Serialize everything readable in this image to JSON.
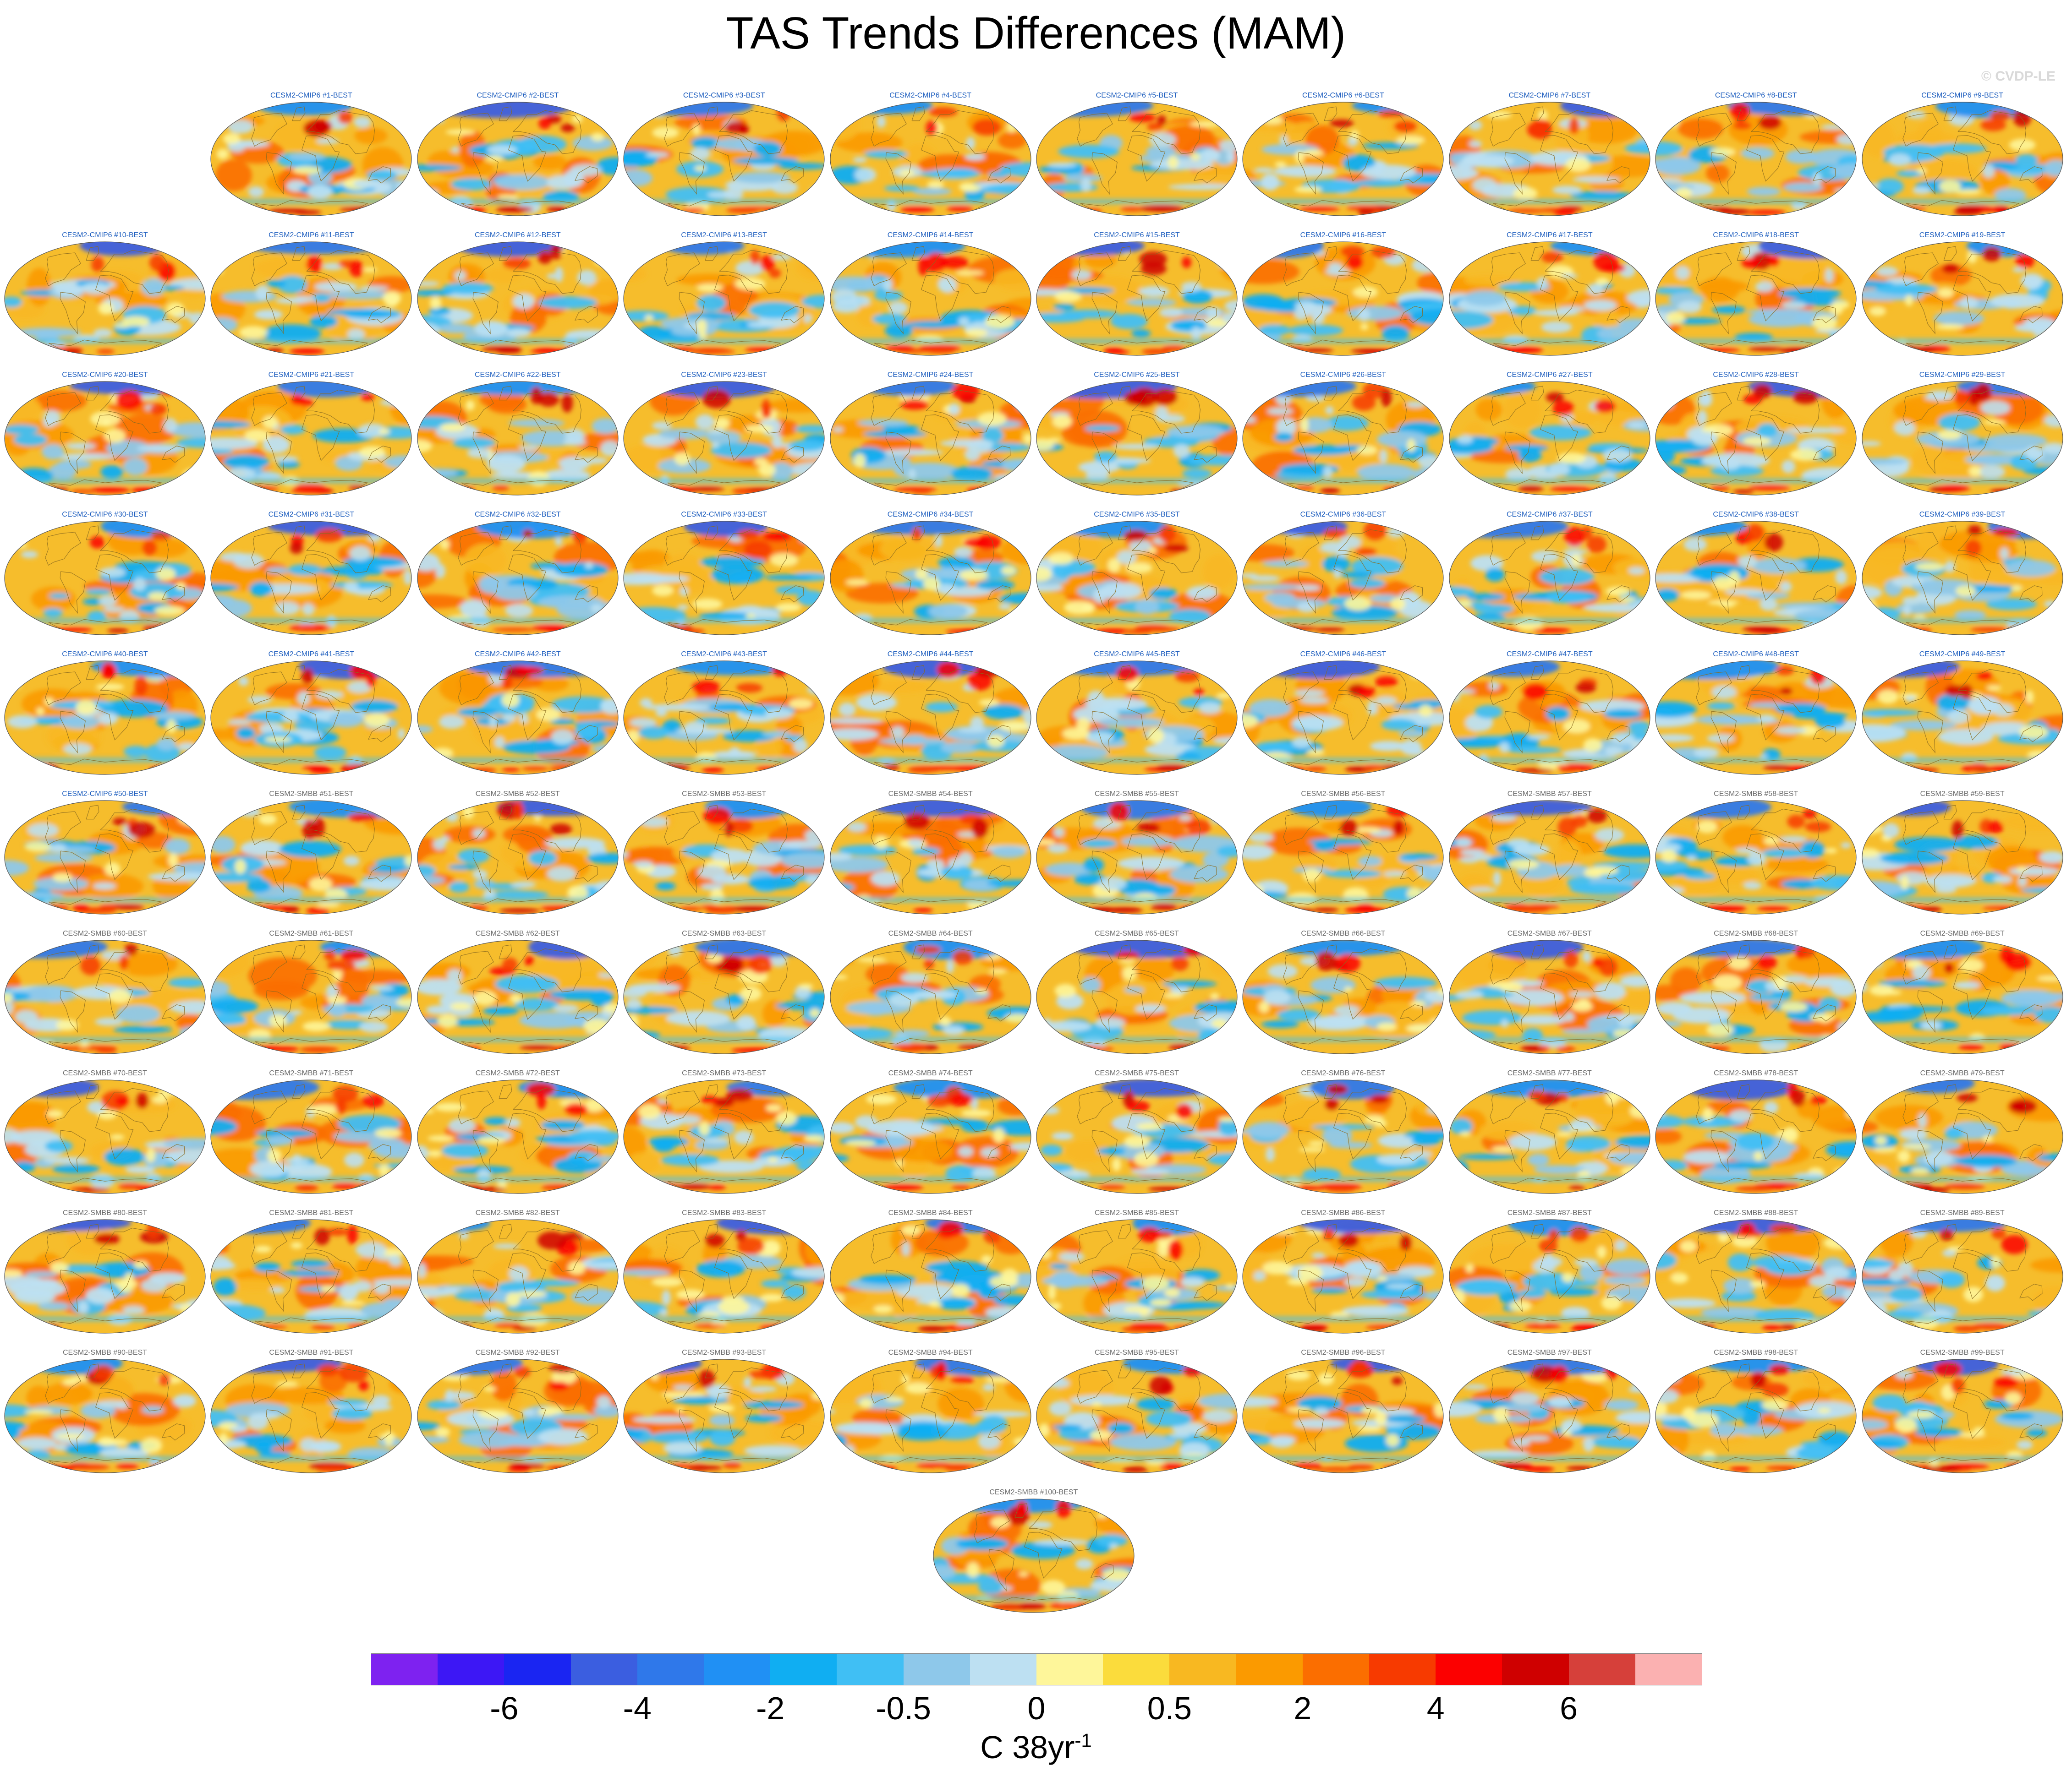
{
  "figure": {
    "title": "TAS Trends Differences (MAM)",
    "copyright": "© CVDP-LE",
    "units_base": "C 38yr",
    "units_exp": "-1"
  },
  "colors": {
    "cmip6_label": "#1f5fbf",
    "smbb_label": "#6b6b6b",
    "coast": "#8a6a1e",
    "ocean_base": "#f6bd2c"
  },
  "colorbar": {
    "colors": [
      "#7e22f0",
      "#3d17f5",
      "#1a25f2",
      "#3b5ee0",
      "#2f78ea",
      "#2090f4",
      "#10aef2",
      "#40bff4",
      "#8ec8ea",
      "#bde0f2",
      "#fef69a",
      "#fbdc3c",
      "#f8b821",
      "#fb9a00",
      "#fb6e00",
      "#f73a00",
      "#fc0000",
      "#cf0000",
      "#d6403a",
      "#fbb1b1"
    ],
    "tick_labels": [
      "-6",
      "-4",
      "-2",
      "-0.5",
      "0",
      "0.5",
      "2",
      "4",
      "6"
    ],
    "tick_boundaries": [
      2,
      4,
      6,
      8,
      10,
      12,
      14,
      16,
      18
    ]
  },
  "panels": [
    {
      "label": "CESM2-CMIP6 #1-BEST",
      "group": "cmip6"
    },
    {
      "label": "CESM2-CMIP6 #2-BEST",
      "group": "cmip6"
    },
    {
      "label": "CESM2-CMIP6 #3-BEST",
      "group": "cmip6"
    },
    {
      "label": "CESM2-CMIP6 #4-BEST",
      "group": "cmip6"
    },
    {
      "label": "CESM2-CMIP6 #5-BEST",
      "group": "cmip6"
    },
    {
      "label": "CESM2-CMIP6 #6-BEST",
      "group": "cmip6"
    },
    {
      "label": "CESM2-CMIP6 #7-BEST",
      "group": "cmip6"
    },
    {
      "label": "CESM2-CMIP6 #8-BEST",
      "group": "cmip6"
    },
    {
      "label": "CESM2-CMIP6 #9-BEST",
      "group": "cmip6"
    },
    {
      "label": "CESM2-CMIP6 #10-BEST",
      "group": "cmip6"
    },
    {
      "label": "CESM2-CMIP6 #11-BEST",
      "group": "cmip6"
    },
    {
      "label": "CESM2-CMIP6 #12-BEST",
      "group": "cmip6"
    },
    {
      "label": "CESM2-CMIP6 #13-BEST",
      "group": "cmip6"
    },
    {
      "label": "CESM2-CMIP6 #14-BEST",
      "group": "cmip6"
    },
    {
      "label": "CESM2-CMIP6 #15-BEST",
      "group": "cmip6"
    },
    {
      "label": "CESM2-CMIP6 #16-BEST",
      "group": "cmip6"
    },
    {
      "label": "CESM2-CMIP6 #17-BEST",
      "group": "cmip6"
    },
    {
      "label": "CESM2-CMIP6 #18-BEST",
      "group": "cmip6"
    },
    {
      "label": "CESM2-CMIP6 #19-BEST",
      "group": "cmip6"
    },
    {
      "label": "CESM2-CMIP6 #20-BEST",
      "group": "cmip6"
    },
    {
      "label": "CESM2-CMIP6 #21-BEST",
      "group": "cmip6"
    },
    {
      "label": "CESM2-CMIP6 #22-BEST",
      "group": "cmip6"
    },
    {
      "label": "CESM2-CMIP6 #23-BEST",
      "group": "cmip6"
    },
    {
      "label": "CESM2-CMIP6 #24-BEST",
      "group": "cmip6"
    },
    {
      "label": "CESM2-CMIP6 #25-BEST",
      "group": "cmip6"
    },
    {
      "label": "CESM2-CMIP6 #26-BEST",
      "group": "cmip6"
    },
    {
      "label": "CESM2-CMIP6 #27-BEST",
      "group": "cmip6"
    },
    {
      "label": "CESM2-CMIP6 #28-BEST",
      "group": "cmip6"
    },
    {
      "label": "CESM2-CMIP6 #29-BEST",
      "group": "cmip6"
    },
    {
      "label": "CESM2-CMIP6 #30-BEST",
      "group": "cmip6"
    },
    {
      "label": "CESM2-CMIP6 #31-BEST",
      "group": "cmip6"
    },
    {
      "label": "CESM2-CMIP6 #32-BEST",
      "group": "cmip6"
    },
    {
      "label": "CESM2-CMIP6 #33-BEST",
      "group": "cmip6"
    },
    {
      "label": "CESM2-CMIP6 #34-BEST",
      "group": "cmip6"
    },
    {
      "label": "CESM2-CMIP6 #35-BEST",
      "group": "cmip6"
    },
    {
      "label": "CESM2-CMIP6 #36-BEST",
      "group": "cmip6"
    },
    {
      "label": "CESM2-CMIP6 #37-BEST",
      "group": "cmip6"
    },
    {
      "label": "CESM2-CMIP6 #38-BEST",
      "group": "cmip6"
    },
    {
      "label": "CESM2-CMIP6 #39-BEST",
      "group": "cmip6"
    },
    {
      "label": "CESM2-CMIP6 #40-BEST",
      "group": "cmip6"
    },
    {
      "label": "CESM2-CMIP6 #41-BEST",
      "group": "cmip6"
    },
    {
      "label": "CESM2-CMIP6 #42-BEST",
      "group": "cmip6"
    },
    {
      "label": "CESM2-CMIP6 #43-BEST",
      "group": "cmip6"
    },
    {
      "label": "CESM2-CMIP6 #44-BEST",
      "group": "cmip6"
    },
    {
      "label": "CESM2-CMIP6 #45-BEST",
      "group": "cmip6"
    },
    {
      "label": "CESM2-CMIP6 #46-BEST",
      "group": "cmip6"
    },
    {
      "label": "CESM2-CMIP6 #47-BEST",
      "group": "cmip6"
    },
    {
      "label": "CESM2-CMIP6 #48-BEST",
      "group": "cmip6"
    },
    {
      "label": "CESM2-CMIP6 #49-BEST",
      "group": "cmip6"
    },
    {
      "label": "CESM2-CMIP6 #50-BEST",
      "group": "cmip6"
    },
    {
      "label": "CESM2-SMBB #51-BEST",
      "group": "smbb"
    },
    {
      "label": "CESM2-SMBB #52-BEST",
      "group": "smbb"
    },
    {
      "label": "CESM2-SMBB #53-BEST",
      "group": "smbb"
    },
    {
      "label": "CESM2-SMBB #54-BEST",
      "group": "smbb"
    },
    {
      "label": "CESM2-SMBB #55-BEST",
      "group": "smbb"
    },
    {
      "label": "CESM2-SMBB #56-BEST",
      "group": "smbb"
    },
    {
      "label": "CESM2-SMBB #57-BEST",
      "group": "smbb"
    },
    {
      "label": "CESM2-SMBB #58-BEST",
      "group": "smbb"
    },
    {
      "label": "CESM2-SMBB #59-BEST",
      "group": "smbb"
    },
    {
      "label": "CESM2-SMBB #60-BEST",
      "group": "smbb"
    },
    {
      "label": "CESM2-SMBB #61-BEST",
      "group": "smbb"
    },
    {
      "label": "CESM2-SMBB #62-BEST",
      "group": "smbb"
    },
    {
      "label": "CESM2-SMBB #63-BEST",
      "group": "smbb"
    },
    {
      "label": "CESM2-SMBB #64-BEST",
      "group": "smbb"
    },
    {
      "label": "CESM2-SMBB #65-BEST",
      "group": "smbb"
    },
    {
      "label": "CESM2-SMBB #66-BEST",
      "group": "smbb"
    },
    {
      "label": "CESM2-SMBB #67-BEST",
      "group": "smbb"
    },
    {
      "label": "CESM2-SMBB #68-BEST",
      "group": "smbb"
    },
    {
      "label": "CESM2-SMBB #69-BEST",
      "group": "smbb"
    },
    {
      "label": "CESM2-SMBB #70-BEST",
      "group": "smbb"
    },
    {
      "label": "CESM2-SMBB #71-BEST",
      "group": "smbb"
    },
    {
      "label": "CESM2-SMBB #72-BEST",
      "group": "smbb"
    },
    {
      "label": "CESM2-SMBB #73-BEST",
      "group": "smbb"
    },
    {
      "label": "CESM2-SMBB #74-BEST",
      "group": "smbb"
    },
    {
      "label": "CESM2-SMBB #75-BEST",
      "group": "smbb"
    },
    {
      "label": "CESM2-SMBB #76-BEST",
      "group": "smbb"
    },
    {
      "label": "CESM2-SMBB #77-BEST",
      "group": "smbb"
    },
    {
      "label": "CESM2-SMBB #78-BEST",
      "group": "smbb"
    },
    {
      "label": "CESM2-SMBB #79-BEST",
      "group": "smbb"
    },
    {
      "label": "CESM2-SMBB #80-BEST",
      "group": "smbb"
    },
    {
      "label": "CESM2-SMBB #81-BEST",
      "group": "smbb"
    },
    {
      "label": "CESM2-SMBB #82-BEST",
      "group": "smbb"
    },
    {
      "label": "CESM2-SMBB #83-BEST",
      "group": "smbb"
    },
    {
      "label": "CESM2-SMBB #84-BEST",
      "group": "smbb"
    },
    {
      "label": "CESM2-SMBB #85-BEST",
      "group": "smbb"
    },
    {
      "label": "CESM2-SMBB #86-BEST",
      "group": "smbb"
    },
    {
      "label": "CESM2-SMBB #87-BEST",
      "group": "smbb"
    },
    {
      "label": "CESM2-SMBB #88-BEST",
      "group": "smbb"
    },
    {
      "label": "CESM2-SMBB #89-BEST",
      "group": "smbb"
    },
    {
      "label": "CESM2-SMBB #90-BEST",
      "group": "smbb"
    },
    {
      "label": "CESM2-SMBB #91-BEST",
      "group": "smbb"
    },
    {
      "label": "CESM2-SMBB #92-BEST",
      "group": "smbb"
    },
    {
      "label": "CESM2-SMBB #93-BEST",
      "group": "smbb"
    },
    {
      "label": "CESM2-SMBB #94-BEST",
      "group": "smbb"
    },
    {
      "label": "CESM2-SMBB #95-BEST",
      "group": "smbb"
    },
    {
      "label": "CESM2-SMBB #96-BEST",
      "group": "smbb"
    },
    {
      "label": "CESM2-SMBB #97-BEST",
      "group": "smbb"
    },
    {
      "label": "CESM2-SMBB #98-BEST",
      "group": "smbb"
    },
    {
      "label": "CESM2-SMBB #99-BEST",
      "group": "smbb"
    },
    {
      "label": "CESM2-SMBB #100-BEST",
      "group": "smbb"
    }
  ]
}
